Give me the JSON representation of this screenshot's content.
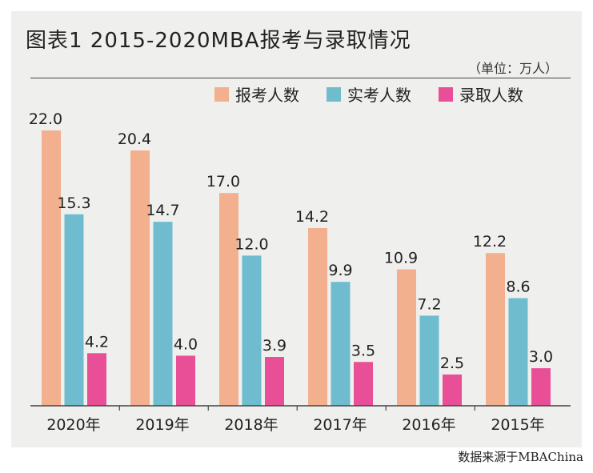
{
  "chart_data": {
    "type": "bar",
    "title": "图表1  2015-2020MBA报考与录取情况",
    "unit_note": "（单位：万人）",
    "categories": [
      "2020年",
      "2019年",
      "2018年",
      "2017年",
      "2016年",
      "2015年"
    ],
    "series": [
      {
        "name": "报考人数",
        "color": "#f2b08e",
        "values": [
          22.0,
          20.4,
          17.0,
          14.2,
          10.9,
          12.2
        ]
      },
      {
        "name": "实考人数",
        "color": "#6fbccf",
        "values": [
          15.3,
          14.7,
          12.0,
          9.9,
          7.2,
          8.6
        ]
      },
      {
        "name": "录取人数",
        "color": "#e94f97",
        "values": [
          4.2,
          4.0,
          3.9,
          3.5,
          2.5,
          3.0
        ]
      }
    ],
    "ylim": [
      0,
      22.0
    ],
    "grid": false,
    "legend_position": "top-right",
    "source": "数据来源于MBAChina"
  }
}
